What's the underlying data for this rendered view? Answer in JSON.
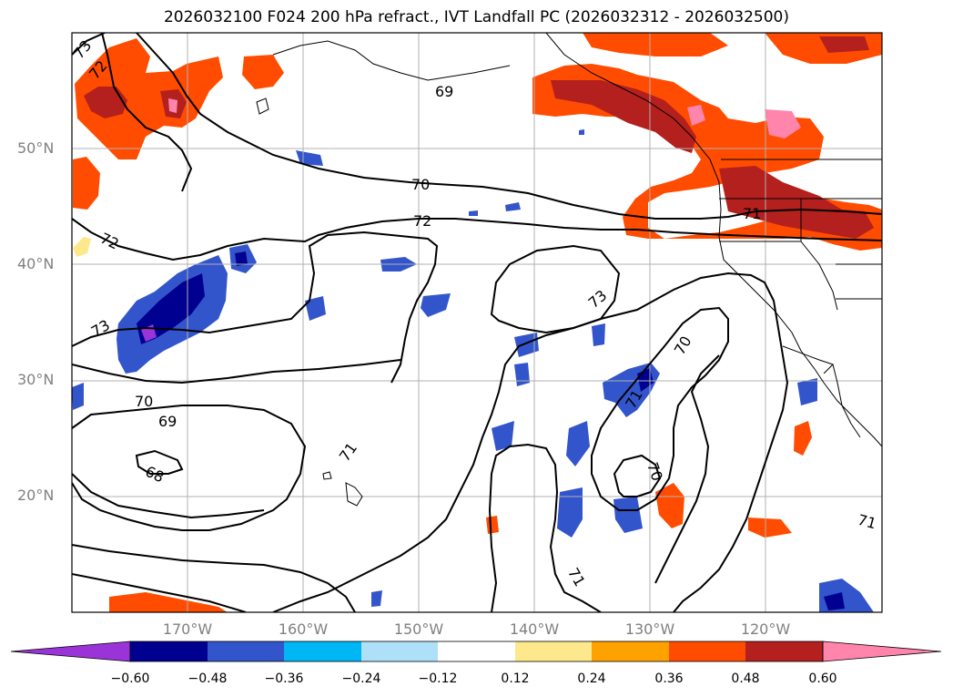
{
  "title": "2026032100 F024 200 hPa refract., IVT Landfall PC (2026032312 - 2026032500)",
  "lat_labels": [
    "50°N",
    "40°N",
    "30°N",
    "20°N"
  ],
  "lon_labels": [
    "170°W",
    "160°W",
    "150°W",
    "140°W",
    "130°W",
    "120°W"
  ],
  "contour_labels": [
    "73",
    "72",
    "69",
    "70",
    "72",
    "71",
    "72",
    "73",
    "73",
    "70",
    "69",
    "68",
    "71",
    "70",
    "71",
    "70",
    "71",
    "71"
  ],
  "colorbar": {
    "colors": [
      "#9a34d8",
      "#000090",
      "#3355cc",
      "#00b6f4",
      "#aee0fa",
      "#ffffff",
      "#fde98c",
      "#ffa200",
      "#ff4c00",
      "#b3201e",
      "#ff85ad"
    ],
    "tick_labels": [
      "−0.60",
      "−0.48",
      "−0.36",
      "−0.24",
      "−0.12",
      "0.12",
      "0.24",
      "0.36",
      "0.48",
      "0.60"
    ]
  }
}
